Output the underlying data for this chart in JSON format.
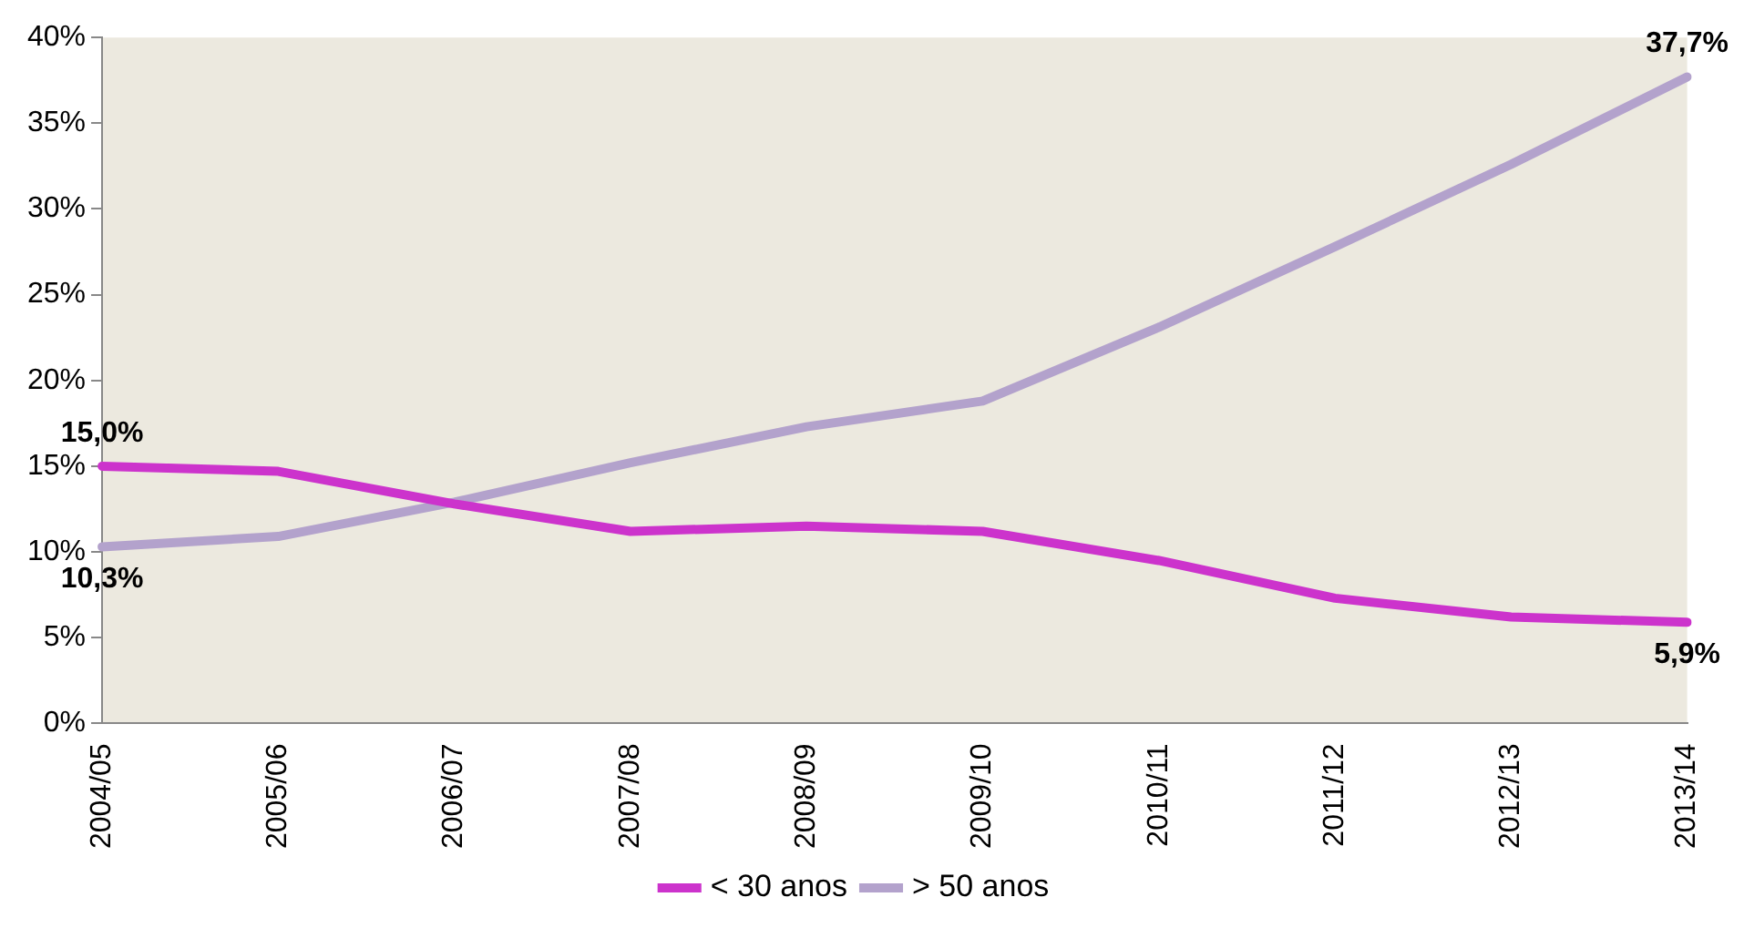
{
  "chart_data": {
    "type": "line",
    "categories": [
      "2004/05",
      "2005/06",
      "2006/07",
      "2007/08",
      "2008/09",
      "2009/10",
      "2010/11",
      "2011/12",
      "2012/13",
      "2013/14"
    ],
    "series": [
      {
        "name": "< 30 anos",
        "color": "#cc33cc",
        "values": [
          15.0,
          14.7,
          12.8,
          11.2,
          11.5,
          11.2,
          9.5,
          7.3,
          6.2,
          5.9
        ],
        "value_labels": [
          "15,0%",
          null,
          null,
          null,
          null,
          null,
          null,
          null,
          null,
          "5,9%"
        ]
      },
      {
        "name": "> 50 anos",
        "color": "#b3a2cc",
        "values": [
          10.3,
          10.9,
          12.9,
          15.2,
          17.3,
          18.8,
          23.1,
          27.8,
          32.6,
          37.7
        ],
        "value_labels": [
          "10,3%",
          null,
          null,
          null,
          null,
          null,
          null,
          null,
          null,
          "37,7%"
        ]
      }
    ],
    "ylim": [
      0,
      40
    ],
    "yticks": [
      {
        "value": 0,
        "label": "0%"
      },
      {
        "value": 5,
        "label": "5%"
      },
      {
        "value": 10,
        "label": "10%"
      },
      {
        "value": 15,
        "label": "15%"
      },
      {
        "value": 20,
        "label": "20%"
      },
      {
        "value": 25,
        "label": "25%"
      },
      {
        "value": 30,
        "label": "30%"
      },
      {
        "value": 35,
        "label": "35%"
      },
      {
        "value": 40,
        "label": "40%"
      }
    ],
    "grid": false,
    "legend": "bottom",
    "marker": "none",
    "line_style": "solid"
  }
}
